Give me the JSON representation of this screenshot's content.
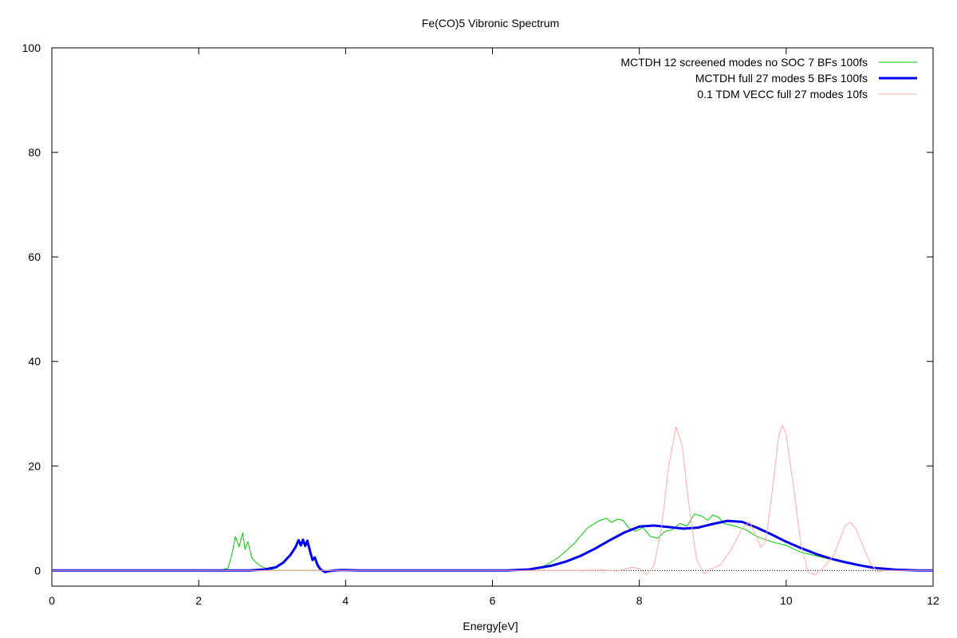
{
  "chart_data": {
    "type": "line",
    "title": "Fe(CO)5 Vibronic Spectrum",
    "xlabel": "Energy[eV]",
    "ylabel": "",
    "xlim": [
      0,
      12
    ],
    "ylim": [
      -3,
      100
    ],
    "xticks": [
      0,
      2,
      4,
      6,
      8,
      10,
      12
    ],
    "yticks": [
      0,
      20,
      40,
      60,
      80,
      100
    ],
    "grid": false,
    "legend_position": "top-right",
    "zero_line": true,
    "series": [
      {
        "name": "MCTDH 12 screened modes no SOC 7 BFs 100fs",
        "color": "#00cc00",
        "width": "thin",
        "points": [
          [
            0,
            0
          ],
          [
            2.3,
            0
          ],
          [
            2.4,
            0.5
          ],
          [
            2.45,
            3
          ],
          [
            2.5,
            6.5
          ],
          [
            2.55,
            4.5
          ],
          [
            2.6,
            7.2
          ],
          [
            2.63,
            4
          ],
          [
            2.67,
            5.5
          ],
          [
            2.72,
            2.5
          ],
          [
            2.78,
            1.5
          ],
          [
            2.85,
            0.8
          ],
          [
            2.95,
            0.2
          ],
          [
            3.05,
            0
          ],
          [
            6.5,
            0
          ],
          [
            6.7,
            0.8
          ],
          [
            6.9,
            2.5
          ],
          [
            7.1,
            5
          ],
          [
            7.3,
            8.2
          ],
          [
            7.45,
            9.5
          ],
          [
            7.55,
            10
          ],
          [
            7.62,
            9.2
          ],
          [
            7.7,
            9.8
          ],
          [
            7.78,
            9.6
          ],
          [
            7.85,
            8.2
          ],
          [
            7.95,
            7.5
          ],
          [
            8.05,
            8.2
          ],
          [
            8.15,
            6.5
          ],
          [
            8.25,
            6.2
          ],
          [
            8.35,
            7.5
          ],
          [
            8.45,
            7.8
          ],
          [
            8.55,
            9
          ],
          [
            8.65,
            8.5
          ],
          [
            8.75,
            10.8
          ],
          [
            8.85,
            10.4
          ],
          [
            8.93,
            9.6
          ],
          [
            9.0,
            10.6
          ],
          [
            9.08,
            10.2
          ],
          [
            9.15,
            9
          ],
          [
            9.3,
            8.5
          ],
          [
            9.45,
            7.8
          ],
          [
            9.6,
            6.5
          ],
          [
            9.8,
            5.5
          ],
          [
            10.0,
            4.8
          ],
          [
            10.2,
            3.5
          ],
          [
            10.5,
            2.5
          ],
          [
            10.8,
            1.5
          ],
          [
            11.1,
            0.7
          ],
          [
            11.4,
            0.2
          ],
          [
            11.7,
            0
          ],
          [
            12,
            0
          ]
        ]
      },
      {
        "name": "MCTDH full 27 modes 5 BFs 100fs",
        "color": "#0000ee",
        "width": "thick",
        "points": [
          [
            0,
            0
          ],
          [
            2.7,
            0
          ],
          [
            2.9,
            0.2
          ],
          [
            3.05,
            0.6
          ],
          [
            3.15,
            1.5
          ],
          [
            3.25,
            3
          ],
          [
            3.32,
            4.5
          ],
          [
            3.36,
            5.8
          ],
          [
            3.39,
            4.8
          ],
          [
            3.42,
            5.9
          ],
          [
            3.45,
            4.7
          ],
          [
            3.48,
            5.7
          ],
          [
            3.52,
            3.5
          ],
          [
            3.55,
            2
          ],
          [
            3.58,
            2.5
          ],
          [
            3.62,
            1
          ],
          [
            3.66,
            0.2
          ],
          [
            3.72,
            -0.3
          ],
          [
            3.78,
            -0.1
          ],
          [
            3.85,
            0
          ],
          [
            3.95,
            0.1
          ],
          [
            4.2,
            0
          ],
          [
            6.2,
            0
          ],
          [
            6.5,
            0.2
          ],
          [
            6.8,
            0.9
          ],
          [
            7.0,
            1.7
          ],
          [
            7.2,
            2.8
          ],
          [
            7.4,
            4.2
          ],
          [
            7.6,
            5.8
          ],
          [
            7.8,
            7.3
          ],
          [
            8.0,
            8.4
          ],
          [
            8.2,
            8.6
          ],
          [
            8.4,
            8.3
          ],
          [
            8.6,
            8.0
          ],
          [
            8.8,
            8.2
          ],
          [
            9.0,
            8.9
          ],
          [
            9.2,
            9.5
          ],
          [
            9.4,
            9.3
          ],
          [
            9.6,
            8.2
          ],
          [
            9.8,
            6.9
          ],
          [
            10.0,
            5.5
          ],
          [
            10.2,
            4.3
          ],
          [
            10.4,
            3.2
          ],
          [
            10.6,
            2.3
          ],
          [
            10.8,
            1.6
          ],
          [
            11.0,
            1.0
          ],
          [
            11.2,
            0.5
          ],
          [
            11.5,
            0.15
          ],
          [
            11.8,
            0
          ],
          [
            12,
            0
          ]
        ]
      },
      {
        "name": "0.1 TDM VECC full 27 modes 10fs",
        "color": "#ffaaaa",
        "width": "thin",
        "points": [
          [
            0,
            0
          ],
          [
            7.2,
            0
          ],
          [
            7.5,
            0.1
          ],
          [
            7.7,
            -0.1
          ],
          [
            7.9,
            0.6
          ],
          [
            8.0,
            0.4
          ],
          [
            8.1,
            -0.8
          ],
          [
            8.2,
            1
          ],
          [
            8.3,
            8
          ],
          [
            8.4,
            20
          ],
          [
            8.5,
            27.5
          ],
          [
            8.58,
            24
          ],
          [
            8.68,
            12
          ],
          [
            8.78,
            2
          ],
          [
            8.88,
            -0.6
          ],
          [
            8.98,
            0.3
          ],
          [
            9.1,
            1
          ],
          [
            9.25,
            4
          ],
          [
            9.4,
            8
          ],
          [
            9.5,
            9.3
          ],
          [
            9.58,
            7
          ],
          [
            9.65,
            4.5
          ],
          [
            9.72,
            5.5
          ],
          [
            9.8,
            14
          ],
          [
            9.9,
            26
          ],
          [
            9.95,
            27.8
          ],
          [
            10.0,
            26
          ],
          [
            10.1,
            16
          ],
          [
            10.2,
            5
          ],
          [
            10.3,
            -0.5
          ],
          [
            10.4,
            -0.8
          ],
          [
            10.5,
            0.4
          ],
          [
            10.65,
            3
          ],
          [
            10.8,
            8.5
          ],
          [
            10.87,
            9.2
          ],
          [
            10.95,
            8
          ],
          [
            11.05,
            4.5
          ],
          [
            11.15,
            1.2
          ],
          [
            11.25,
            -0.2
          ],
          [
            11.35,
            0
          ],
          [
            12,
            0
          ]
        ]
      }
    ]
  }
}
